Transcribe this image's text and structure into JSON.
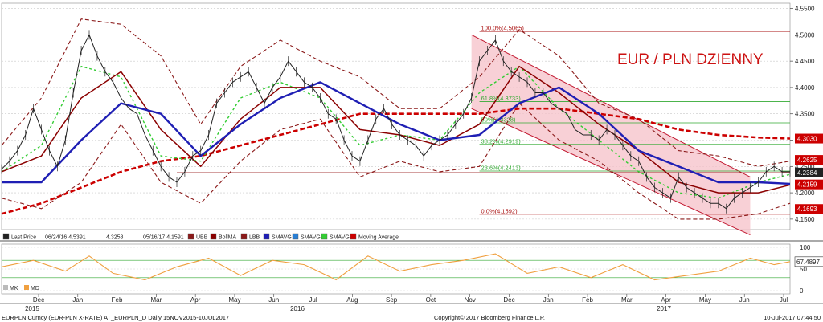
{
  "title": "EUR / PLN DZIENNY",
  "colors": {
    "last_price": "#222222",
    "bollma": "#8b0000",
    "bollband": "#8b1a1a",
    "sma_fast": "#1f1fb4",
    "sma_slow": "#cc0000",
    "sma_green": "#33cc33",
    "channel_fill": "#f6c0c8",
    "channel_line": "#c21830",
    "rsi": "#f0a040",
    "tag_red": "#cc0000",
    "tag_dark": "#222222"
  },
  "legend": [
    {
      "swatch": "#222222",
      "label": "Last Price"
    },
    {
      "swatch": "none",
      "label": "06/24/16 4.5391"
    },
    {
      "swatch": "none",
      "label": "4.3258"
    },
    {
      "swatch": "none",
      "label": "05/16/17 4.1591"
    },
    {
      "swatch": "#8b1a1a",
      "label": "UBB"
    },
    {
      "swatch": "#8b0000",
      "label": "BollMA"
    },
    {
      "swatch": "#8b1a1a",
      "label": "LBB"
    },
    {
      "swatch": "#1f1fb4",
      "label": "SMAVG"
    },
    {
      "swatch": "#2a7fd4",
      "label": "SMAVG"
    },
    {
      "swatch": "#33cc33",
      "label": "SMAVG"
    },
    {
      "swatch": "#cc0000",
      "label": "Moving Average"
    }
  ],
  "rsi_legend": [
    "MK",
    "MD"
  ],
  "footer": {
    "left": "EURPLN Curncy (EUR-PLN X-RATE) AT_EURPLN_D  Daily 15NOV2015-10JUL2017",
    "center": "Copyright© 2017 Bloomberg Finance L.P.",
    "right": "10-Jul-2017 07:44:50"
  },
  "chart_data": [
    {
      "type": "line",
      "title": "EUR / PLN DZIENNY",
      "months": [
        "Dec",
        "Jan",
        "Feb",
        "Mar",
        "Apr",
        "May",
        "Jun",
        "Jul",
        "Aug",
        "Sep",
        "Oct",
        "Nov",
        "Dec",
        "Jan",
        "Feb",
        "Mar",
        "Apr",
        "May",
        "Jun",
        "Jul"
      ],
      "years": [
        "2015",
        "2016",
        "2017"
      ],
      "y_ticks": [
        "4.5500",
        "4.5000",
        "4.4500",
        "4.4000",
        "4.3500",
        "4.3000",
        "4.2500",
        "4.2000",
        "4.1500"
      ],
      "ylim": [
        4.13,
        4.56
      ],
      "grid": true,
      "price_tags": [
        {
          "value": 4.303,
          "label": "4.3030",
          "color": "#cc0000"
        },
        {
          "value": 4.2625,
          "label": "4.2625",
          "color": "#cc0000"
        },
        {
          "value": 4.2384,
          "label": "4.2384",
          "color": "#222222"
        },
        {
          "value": 4.2159,
          "label": "4.2159",
          "color": "#cc0000"
        },
        {
          "value": 4.1693,
          "label": "4.1693",
          "color": "#cc0000"
        }
      ],
      "fibonacci": [
        {
          "label": "100.0%(4.5065)",
          "value": 4.5065
        },
        {
          "label": "61.8%(4.3733)",
          "value": 4.3733
        },
        {
          "label": "50%(4.3328)",
          "value": 4.3328
        },
        {
          "label": "38.2%(4.2919)",
          "value": 4.2919
        },
        {
          "label": "23.6%(4.2413)",
          "value": 4.2413
        },
        {
          "label": "0.0%(4.1592)",
          "value": 4.1592
        }
      ],
      "support_level": 4.238,
      "series": [
        {
          "key": "price",
          "x": [
            0,
            1,
            2,
            3,
            4,
            5,
            6,
            7,
            8,
            9,
            10,
            11,
            12,
            13,
            14,
            15,
            16,
            17,
            18,
            19,
            20,
            21,
            22,
            23,
            24,
            25,
            26,
            27,
            28,
            29,
            30,
            31,
            32,
            33,
            34,
            35,
            36,
            37,
            38,
            39,
            40,
            41,
            42,
            43,
            44,
            45,
            46,
            47,
            48,
            49,
            50,
            51,
            52,
            53,
            54,
            55,
            56,
            57,
            58,
            59,
            60,
            61,
            62,
            63,
            64,
            65,
            66,
            67,
            68,
            69,
            70,
            71,
            72,
            73,
            74,
            75,
            76,
            77,
            78,
            79,
            80,
            81,
            82,
            83,
            84,
            85,
            86,
            87,
            88,
            89,
            90,
            91,
            92,
            93,
            94,
            95,
            96,
            97,
            98,
            99
          ],
          "y": [
            4.245,
            4.26,
            4.28,
            4.31,
            4.36,
            4.32,
            4.28,
            4.25,
            4.3,
            4.39,
            4.47,
            4.5,
            4.46,
            4.43,
            4.41,
            4.38,
            4.36,
            4.35,
            4.31,
            4.28,
            4.25,
            4.23,
            4.22,
            4.24,
            4.27,
            4.28,
            4.31,
            4.37,
            4.39,
            4.41,
            4.42,
            4.43,
            4.4,
            4.37,
            4.4,
            4.42,
            4.45,
            4.43,
            4.41,
            4.4,
            4.38,
            4.35,
            4.34,
            4.3,
            4.27,
            4.26,
            4.3,
            4.34,
            4.36,
            4.33,
            4.31,
            4.3,
            4.29,
            4.27,
            4.29,
            4.3,
            4.31,
            4.33,
            4.35,
            4.38,
            4.45,
            4.47,
            4.49,
            4.45,
            4.43,
            4.42,
            4.41,
            4.39,
            4.39,
            4.37,
            4.36,
            4.35,
            4.32,
            4.31,
            4.31,
            4.3,
            4.32,
            4.31,
            4.29,
            4.27,
            4.26,
            4.23,
            4.21,
            4.2,
            4.19,
            4.23,
            4.21,
            4.2,
            4.19,
            4.18,
            4.18,
            4.17,
            4.19,
            4.2,
            4.21,
            4.22,
            4.24,
            4.25,
            4.24,
            4.24
          ]
        },
        {
          "key": "bollma",
          "x": [
            0,
            5,
            10,
            15,
            20,
            25,
            30,
            35,
            40,
            45,
            50,
            55,
            60,
            65,
            70,
            75,
            80,
            85,
            90,
            95,
            99
          ],
          "y": [
            4.24,
            4.27,
            4.38,
            4.43,
            4.32,
            4.25,
            4.34,
            4.4,
            4.4,
            4.32,
            4.31,
            4.29,
            4.33,
            4.44,
            4.39,
            4.33,
            4.28,
            4.22,
            4.2,
            4.2,
            4.215
          ]
        },
        {
          "key": "ubb",
          "x": [
            0,
            5,
            10,
            15,
            20,
            25,
            30,
            35,
            40,
            45,
            50,
            55,
            60,
            65,
            70,
            75,
            80,
            85,
            90,
            95,
            99
          ],
          "y": [
            4.29,
            4.38,
            4.53,
            4.52,
            4.46,
            4.33,
            4.44,
            4.49,
            4.45,
            4.42,
            4.36,
            4.36,
            4.42,
            4.51,
            4.46,
            4.37,
            4.34,
            4.28,
            4.27,
            4.25,
            4.26
          ]
        },
        {
          "key": "lbb",
          "x": [
            0,
            5,
            10,
            15,
            20,
            25,
            30,
            35,
            40,
            45,
            50,
            55,
            60,
            65,
            70,
            75,
            80,
            85,
            90,
            95,
            99
          ],
          "y": [
            4.19,
            4.17,
            4.22,
            4.33,
            4.22,
            4.18,
            4.26,
            4.32,
            4.34,
            4.23,
            4.26,
            4.24,
            4.25,
            4.37,
            4.3,
            4.26,
            4.2,
            4.15,
            4.15,
            4.16,
            4.18
          ]
        },
        {
          "key": "sma_fast",
          "x": [
            0,
            5,
            10,
            15,
            20,
            25,
            30,
            35,
            40,
            45,
            50,
            55,
            60,
            65,
            70,
            75,
            80,
            85,
            90,
            95,
            99
          ],
          "y": [
            4.22,
            4.22,
            4.3,
            4.37,
            4.35,
            4.27,
            4.33,
            4.38,
            4.41,
            4.37,
            4.33,
            4.3,
            4.31,
            4.37,
            4.4,
            4.35,
            4.28,
            4.25,
            4.22,
            4.22,
            4.217
          ]
        },
        {
          "key": "sma_slow",
          "x": [
            0,
            5,
            10,
            15,
            20,
            25,
            30,
            35,
            40,
            45,
            50,
            55,
            60,
            65,
            70,
            75,
            80,
            85,
            90,
            95,
            99
          ],
          "y": [
            4.16,
            4.18,
            4.21,
            4.24,
            4.26,
            4.27,
            4.29,
            4.31,
            4.33,
            4.35,
            4.35,
            4.35,
            4.35,
            4.36,
            4.36,
            4.35,
            4.34,
            4.32,
            4.31,
            4.305,
            4.303
          ]
        },
        {
          "key": "sma_green",
          "x": [
            0,
            5,
            10,
            15,
            20,
            25,
            30,
            35,
            40,
            45,
            50,
            55,
            60,
            65,
            70,
            75,
            80,
            85,
            90,
            95,
            99
          ],
          "y": [
            4.24,
            4.29,
            4.44,
            4.42,
            4.27,
            4.26,
            4.38,
            4.41,
            4.38,
            4.29,
            4.31,
            4.3,
            4.39,
            4.44,
            4.36,
            4.3,
            4.24,
            4.2,
            4.19,
            4.22,
            4.235
          ]
        }
      ]
    },
    {
      "type": "line",
      "title": "",
      "y_ticks": [
        "100",
        "50",
        "0"
      ],
      "value_tag": "67.4897",
      "series": [
        {
          "key": "rsi",
          "x": [
            0,
            4,
            8,
            11,
            14,
            18,
            22,
            26,
            30,
            34,
            38,
            42,
            46,
            50,
            54,
            58,
            62,
            66,
            70,
            74,
            78,
            82,
            86,
            90,
            94,
            97,
            99
          ],
          "y": [
            55,
            70,
            45,
            80,
            40,
            25,
            55,
            75,
            35,
            70,
            60,
            25,
            80,
            45,
            60,
            70,
            85,
            40,
            55,
            30,
            60,
            25,
            35,
            45,
            75,
            60,
            67
          ]
        }
      ]
    }
  ]
}
